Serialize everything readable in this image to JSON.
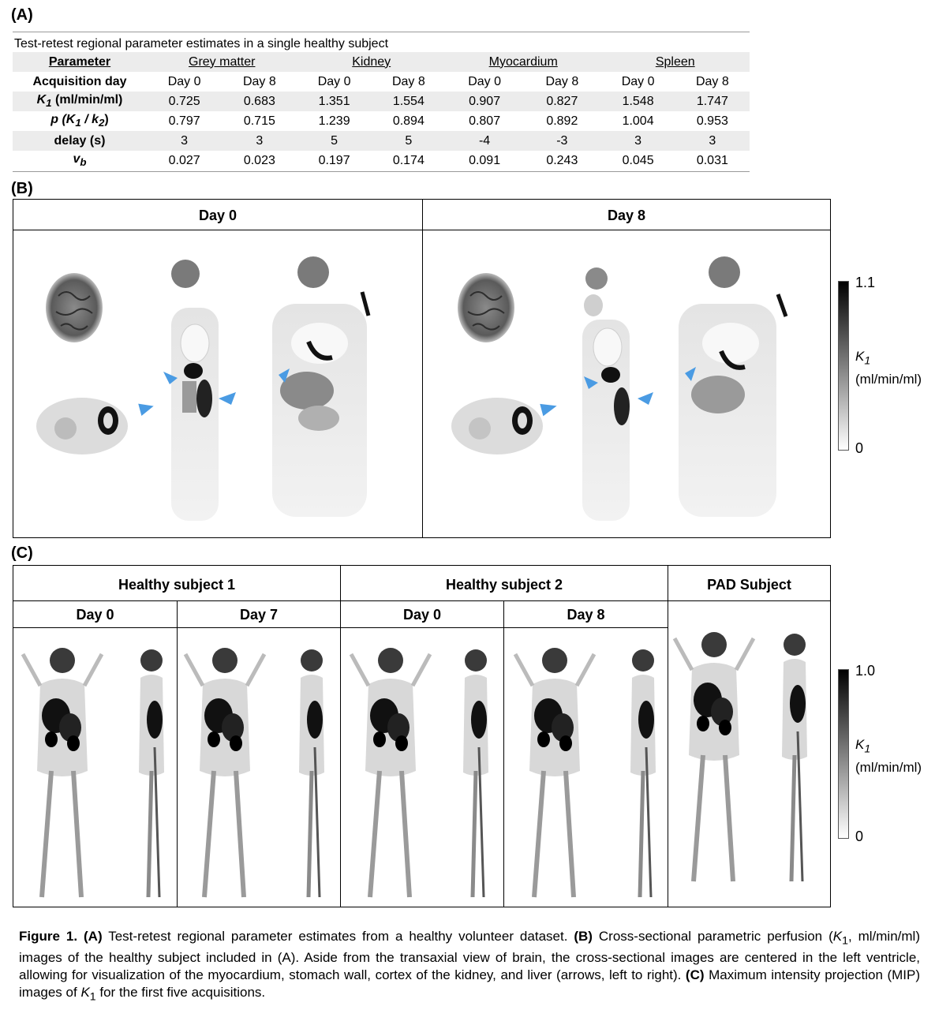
{
  "panel_a": {
    "label": "(A)",
    "table_title": "Test-retest regional parameter estimates in a single healthy subject",
    "header": {
      "parameter": "Parameter",
      "regions": [
        "Grey matter",
        "Kidney",
        "Myocardium",
        "Spleen"
      ]
    },
    "rows": [
      {
        "name": "Acquisition day",
        "values": [
          "Day 0",
          "Day 8",
          "Day 0",
          "Day 8",
          "Day 0",
          "Day 8",
          "Day 0",
          "Day 8"
        ]
      },
      {
        "name_main": "K",
        "name_sub": "1",
        "name_rest": " (ml/min/ml)",
        "values": [
          "0.725",
          "0.683",
          "1.351",
          "1.554",
          "0.907",
          "0.827",
          "1.548",
          "1.747"
        ]
      },
      {
        "name_main": "p (K",
        "name_sub": "1",
        "name_mid": " / k",
        "name_sub2": "2",
        "name_rest": ")",
        "values": [
          "0.797",
          "0.715",
          "1.239",
          "0.894",
          "0.807",
          "0.892",
          "1.004",
          "0.953"
        ]
      },
      {
        "name": "delay (s)",
        "values": [
          "3",
          "3",
          "5",
          "5",
          "-4",
          "-3",
          "3",
          "3"
        ]
      },
      {
        "name_main": "v",
        "name_sub": "b",
        "values": [
          "0.027",
          "0.023",
          "0.197",
          "0.174",
          "0.091",
          "0.243",
          "0.045",
          "0.031"
        ]
      }
    ]
  },
  "panel_b": {
    "label": "(B)",
    "columns": [
      "Day 0",
      "Day 8"
    ],
    "colorbar": {
      "max": "1.1",
      "min": "0",
      "label_main": "K",
      "label_sub": "1",
      "label_unit": "(ml/min/ml)"
    }
  },
  "panel_c": {
    "label": "(C)",
    "groups": [
      "Healthy subject 1",
      "Healthy subject 2",
      "PAD Subject"
    ],
    "days": [
      "Day 0",
      "Day 7",
      "Day 0",
      "Day 8"
    ],
    "colorbar": {
      "max": "1.0",
      "min": "0",
      "label_main": "K",
      "label_sub": "1",
      "label_unit": "(ml/min/ml)"
    }
  },
  "caption": {
    "fig": "Figure 1.",
    "a_tag": "(A)",
    "a_text": " Test-retest regional parameter estimates from a healthy volunteer dataset. ",
    "b_tag": "(B)",
    "b_text1": " Cross-sectional parametric perfusion (",
    "b_k": "K",
    "b_sub": "1",
    "b_text2": ", ml/min/ml) images of the healthy subject included in (A). Aside from the transaxial view of brain, the cross-sectional images are centered in the left ventricle, allowing for visualization of the myocardium, stomach wall, cortex of the kidney, and liver (arrows, left to right). ",
    "c_tag": "(C)",
    "c_text1": " Maximum intensity projection (MIP) images of ",
    "c_k": "K",
    "c_sub": "1",
    "c_text2": " for the first five acquisitions."
  }
}
